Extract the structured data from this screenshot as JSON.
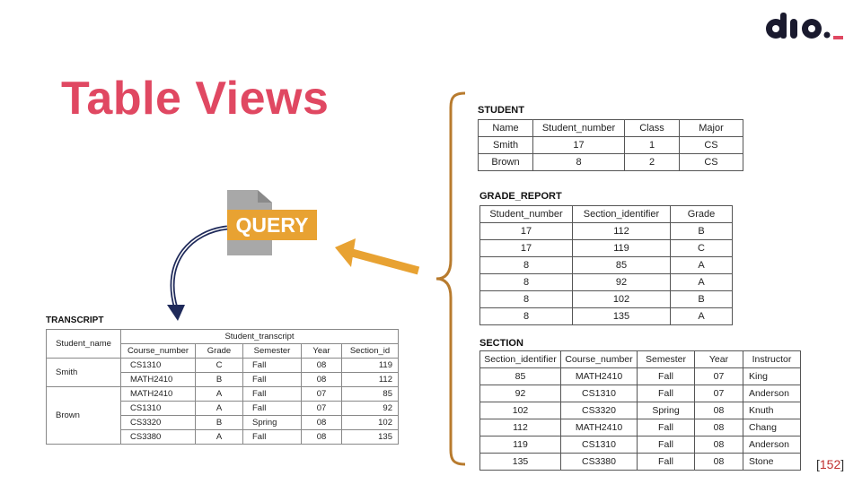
{
  "slide": {
    "title": "Table Views",
    "page_number": "152",
    "query_label": "QUERY"
  },
  "colors": {
    "title": "#e04862",
    "query_orange": "#e8a232",
    "logo_dot": "#e04862"
  },
  "student": {
    "caption": "STUDENT",
    "headers": [
      "Name",
      "Student_number",
      "Class",
      "Major"
    ],
    "rows": [
      [
        "Smith",
        "17",
        "1",
        "CS"
      ],
      [
        "Brown",
        "8",
        "2",
        "CS"
      ]
    ]
  },
  "grade_report": {
    "caption": "GRADE_REPORT",
    "headers": [
      "Student_number",
      "Section_identifier",
      "Grade"
    ],
    "rows": [
      [
        "17",
        "112",
        "B"
      ],
      [
        "17",
        "119",
        "C"
      ],
      [
        "8",
        "85",
        "A"
      ],
      [
        "8",
        "92",
        "A"
      ],
      [
        "8",
        "102",
        "B"
      ],
      [
        "8",
        "135",
        "A"
      ]
    ]
  },
  "section": {
    "caption": "SECTION",
    "headers": [
      "Section_identifier",
      "Course_number",
      "Semester",
      "Year",
      "Instructor"
    ],
    "rows": [
      [
        "85",
        "MATH2410",
        "Fall",
        "07",
        "King"
      ],
      [
        "92",
        "CS1310",
        "Fall",
        "07",
        "Anderson"
      ],
      [
        "102",
        "CS3320",
        "Spring",
        "08",
        "Knuth"
      ],
      [
        "112",
        "MATH2410",
        "Fall",
        "08",
        "Chang"
      ],
      [
        "119",
        "CS1310",
        "Fall",
        "08",
        "Anderson"
      ],
      [
        "135",
        "CS3380",
        "Fall",
        "08",
        "Stone"
      ]
    ]
  },
  "transcript": {
    "caption": "TRANSCRIPT",
    "group_header": "Student_transcript",
    "name_header": "Student_name",
    "headers": [
      "Course_number",
      "Grade",
      "Semester",
      "Year",
      "Section_id"
    ],
    "students": [
      {
        "name": "Smith",
        "rows": [
          [
            "CS1310",
            "C",
            "Fall",
            "08",
            "119"
          ],
          [
            "MATH2410",
            "B",
            "Fall",
            "08",
            "112"
          ]
        ]
      },
      {
        "name": "Brown",
        "rows": [
          [
            "MATH2410",
            "A",
            "Fall",
            "07",
            "85"
          ],
          [
            "CS1310",
            "A",
            "Fall",
            "07",
            "92"
          ],
          [
            "CS3320",
            "B",
            "Spring",
            "08",
            "102"
          ],
          [
            "CS3380",
            "A",
            "Fall",
            "08",
            "135"
          ]
        ]
      }
    ]
  }
}
